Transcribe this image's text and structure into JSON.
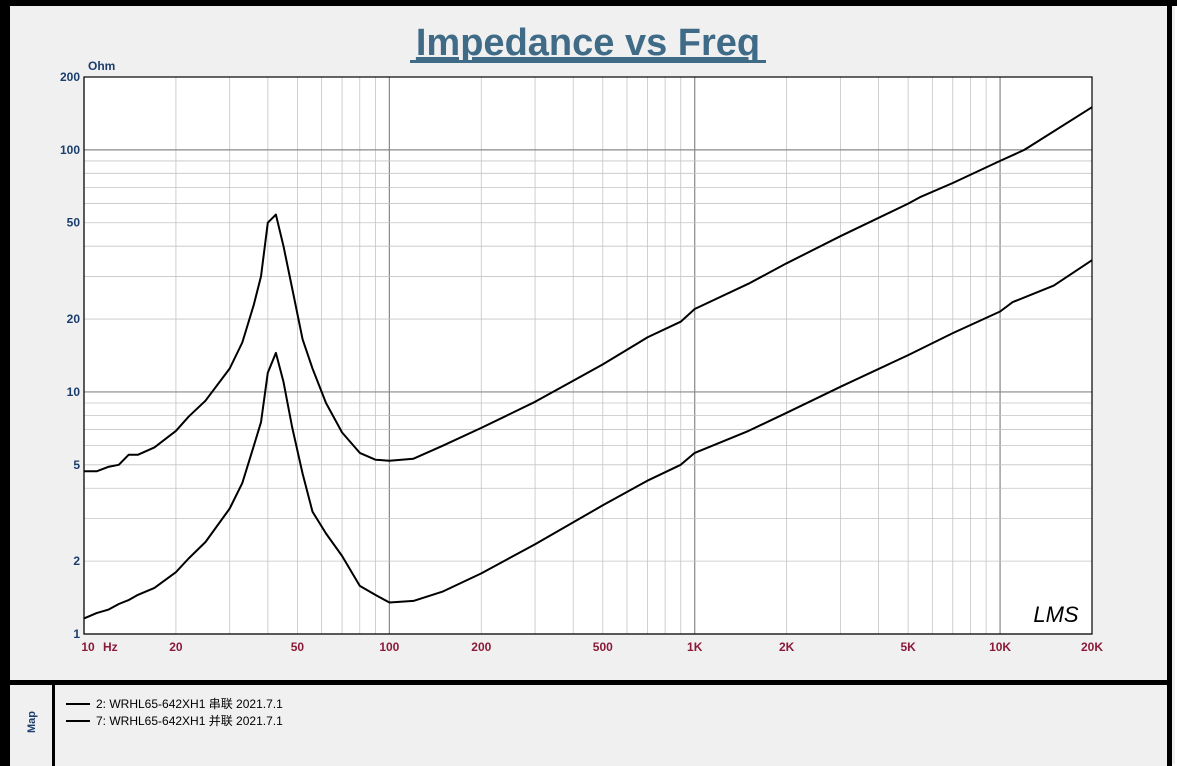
{
  "chart_data": {
    "type": "line",
    "title": "Impedance vs Freq",
    "ylabel": "Ohm",
    "xlabel": "Hz",
    "x_scale": "log",
    "y_scale": "log",
    "xlim": [
      10,
      20000
    ],
    "ylim": [
      1,
      200
    ],
    "grid": true,
    "watermark": "LMS",
    "x_ticks": [
      {
        "value": 10,
        "label": "10"
      },
      {
        "value": 20,
        "label": "20"
      },
      {
        "value": 50,
        "label": "50"
      },
      {
        "value": 100,
        "label": "100"
      },
      {
        "value": 200,
        "label": "200"
      },
      {
        "value": 500,
        "label": "500"
      },
      {
        "value": 1000,
        "label": "1K"
      },
      {
        "value": 2000,
        "label": "2K"
      },
      {
        "value": 5000,
        "label": "5K"
      },
      {
        "value": 10000,
        "label": "10K"
      },
      {
        "value": 20000,
        "label": "20K"
      }
    ],
    "y_ticks": [
      {
        "value": 1,
        "label": "1"
      },
      {
        "value": 2,
        "label": "2"
      },
      {
        "value": 5,
        "label": "5"
      },
      {
        "value": 10,
        "label": "10"
      },
      {
        "value": 20,
        "label": "20"
      },
      {
        "value": 50,
        "label": "50"
      },
      {
        "value": 100,
        "label": "100"
      },
      {
        "value": 200,
        "label": "200"
      }
    ],
    "series": [
      {
        "name": "2: WRHL65-642XH1 串联 2021.7.1",
        "color": "#000000",
        "points": [
          [
            10,
            4.7
          ],
          [
            11,
            4.7
          ],
          [
            12,
            4.9
          ],
          [
            13,
            5.0
          ],
          [
            14,
            5.5
          ],
          [
            15,
            5.5
          ],
          [
            17,
            5.9
          ],
          [
            20,
            6.9
          ],
          [
            22,
            7.9
          ],
          [
            25,
            9.2
          ],
          [
            30,
            12.5
          ],
          [
            33,
            16
          ],
          [
            36,
            23
          ],
          [
            38,
            30
          ],
          [
            40,
            50
          ],
          [
            42.5,
            54
          ],
          [
            45,
            40
          ],
          [
            48,
            27
          ],
          [
            52,
            16.5
          ],
          [
            56,
            12.5
          ],
          [
            62,
            9.0
          ],
          [
            70,
            6.8
          ],
          [
            80,
            5.6
          ],
          [
            90,
            5.25
          ],
          [
            100,
            5.2
          ],
          [
            120,
            5.3
          ],
          [
            150,
            6.0
          ],
          [
            200,
            7.1
          ],
          [
            300,
            9.1
          ],
          [
            500,
            13.0
          ],
          [
            700,
            16.8
          ],
          [
            900,
            19.5
          ],
          [
            1000,
            22
          ],
          [
            1500,
            28
          ],
          [
            2000,
            34
          ],
          [
            3000,
            44
          ],
          [
            5000,
            60
          ],
          [
            5500,
            64
          ],
          [
            7000,
            73
          ],
          [
            10000,
            90
          ],
          [
            12000,
            100
          ],
          [
            20000,
            150
          ]
        ]
      },
      {
        "name": "7: WRHL65-642XH1 并联 2021.7.1",
        "color": "#000000",
        "points": [
          [
            10,
            1.16
          ],
          [
            11,
            1.22
          ],
          [
            12,
            1.26
          ],
          [
            13,
            1.33
          ],
          [
            14,
            1.38
          ],
          [
            15,
            1.45
          ],
          [
            17,
            1.55
          ],
          [
            20,
            1.8
          ],
          [
            22,
            2.05
          ],
          [
            25,
            2.4
          ],
          [
            30,
            3.3
          ],
          [
            33,
            4.2
          ],
          [
            36,
            6.0
          ],
          [
            38,
            7.5
          ],
          [
            40,
            12
          ],
          [
            42.5,
            14.5
          ],
          [
            45,
            11
          ],
          [
            48,
            7.2
          ],
          [
            52,
            4.6
          ],
          [
            56,
            3.2
          ],
          [
            62,
            2.6
          ],
          [
            70,
            2.1
          ],
          [
            80,
            1.58
          ],
          [
            90,
            1.45
          ],
          [
            100,
            1.35
          ],
          [
            120,
            1.37
          ],
          [
            150,
            1.5
          ],
          [
            200,
            1.78
          ],
          [
            300,
            2.35
          ],
          [
            500,
            3.4
          ],
          [
            700,
            4.3
          ],
          [
            900,
            5.0
          ],
          [
            1000,
            5.6
          ],
          [
            1500,
            6.9
          ],
          [
            2000,
            8.2
          ],
          [
            3000,
            10.5
          ],
          [
            5000,
            14.2
          ],
          [
            7000,
            17.5
          ],
          [
            10000,
            21.5
          ],
          [
            11000,
            23.5
          ],
          [
            15000,
            27.5
          ],
          [
            20000,
            35
          ]
        ]
      }
    ]
  },
  "map_panel": {
    "label": "Map"
  }
}
